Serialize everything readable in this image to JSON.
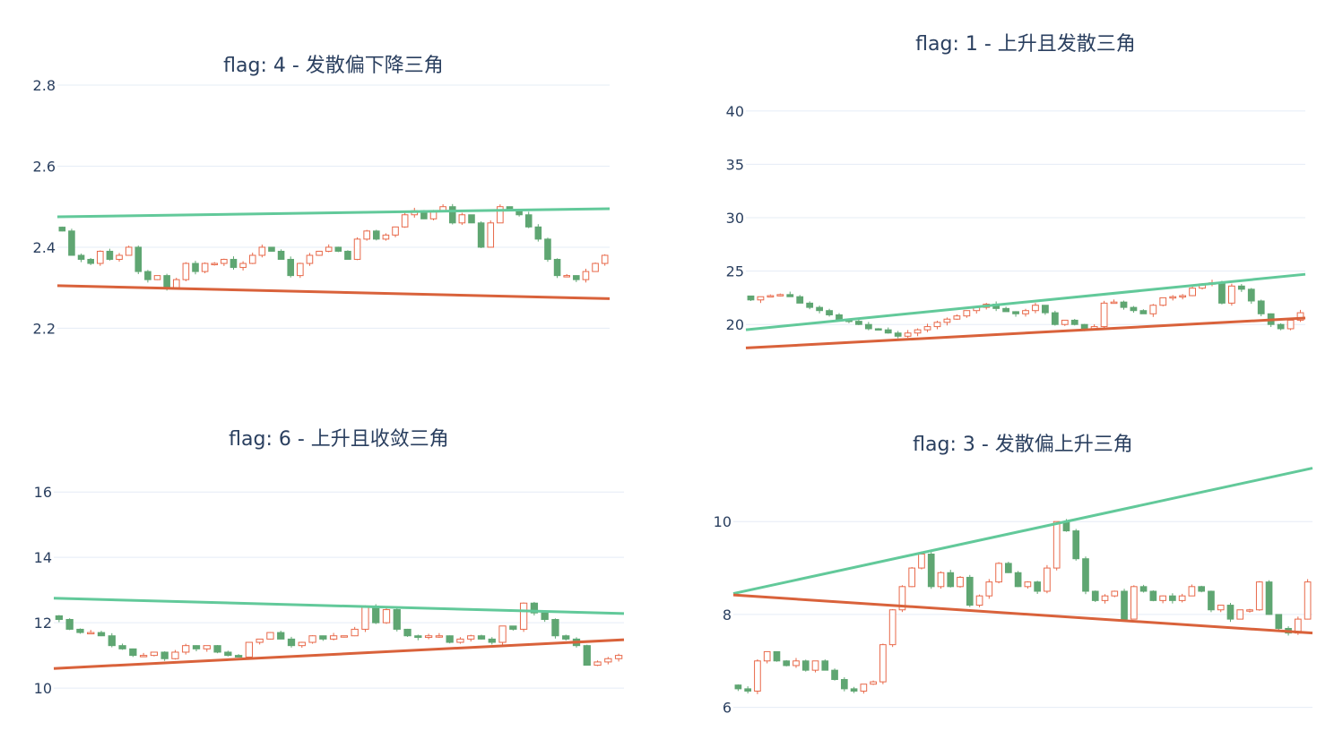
{
  "colors": {
    "up": "#e8694a",
    "down": "#5fa672",
    "upper_line": "#62c99a",
    "lower_line": "#d9623b",
    "grid": "#e5ecf6",
    "text": "#2a3f5f"
  },
  "chart_data": [
    {
      "type": "candlestick",
      "title": "flag: 4 - 发散偏下降三角",
      "xlabel": "",
      "ylabel": "",
      "ylim": [
        2.17,
        2.8
      ],
      "yticks": [
        2.2,
        2.4,
        2.6,
        2.8
      ],
      "grid": true,
      "upper_line": [
        2.475,
        2.495
      ],
      "lower_line": [
        2.305,
        2.273
      ],
      "closes": [
        2.44,
        2.38,
        2.37,
        2.36,
        2.39,
        2.37,
        2.38,
        2.4,
        2.34,
        2.32,
        2.33,
        2.3,
        2.32,
        2.36,
        2.34,
        2.36,
        2.36,
        2.37,
        2.35,
        2.36,
        2.38,
        2.4,
        2.39,
        2.37,
        2.33,
        2.36,
        2.38,
        2.39,
        2.4,
        2.39,
        2.37,
        2.42,
        2.44,
        2.42,
        2.43,
        2.45,
        2.48,
        2.49,
        2.47,
        2.49,
        2.5,
        2.46,
        2.48,
        2.46,
        2.4,
        2.46,
        2.5,
        2.49,
        2.48,
        2.45,
        2.42,
        2.37,
        2.33,
        2.33,
        2.32,
        2.34,
        2.36,
        2.38
      ],
      "note_open_is_previous_close": true
    },
    {
      "type": "candlestick",
      "title": "flag: 1 - 上升且发散三角",
      "xlabel": "",
      "ylabel": "",
      "ylim": [
        17.5,
        42
      ],
      "yticks": [
        20,
        25,
        30,
        35,
        40
      ],
      "grid": true,
      "upper_line": [
        19.5,
        24.7
      ],
      "lower_line": [
        17.8,
        20.6
      ],
      "closes": [
        22.3,
        22.6,
        22.7,
        22.8,
        22.6,
        22.0,
        21.6,
        21.3,
        20.9,
        20.4,
        20.3,
        20.0,
        19.6,
        19.5,
        19.2,
        18.9,
        19.2,
        19.5,
        19.8,
        20.2,
        20.5,
        20.8,
        21.3,
        21.6,
        21.9,
        21.5,
        21.2,
        21.0,
        21.3,
        21.8,
        21.1,
        20.0,
        20.4,
        20.0,
        19.6,
        19.8,
        22.0,
        22.1,
        21.6,
        21.3,
        21.0,
        21.8,
        22.5,
        22.6,
        22.7,
        23.4,
        23.8,
        23.9,
        22.0,
        23.6,
        23.3,
        22.2,
        21.0,
        20.0,
        19.6,
        20.4,
        21.1
      ],
      "note_open_is_previous_close": true
    },
    {
      "type": "candlestick",
      "title": "flag: 6 - 上升且收敛三角",
      "xlabel": "",
      "ylabel": "",
      "ylim": [
        9.4,
        16.8
      ],
      "yticks": [
        10,
        12,
        14,
        16
      ],
      "grid": true,
      "upper_line": [
        12.75,
        12.28
      ],
      "lower_line": [
        10.6,
        11.48
      ],
      "closes": [
        12.1,
        11.8,
        11.7,
        11.7,
        11.6,
        11.3,
        11.2,
        11.0,
        11.0,
        11.1,
        10.9,
        11.1,
        11.3,
        11.2,
        11.3,
        11.1,
        11.0,
        10.95,
        11.4,
        11.5,
        11.7,
        11.5,
        11.3,
        11.4,
        11.6,
        11.5,
        11.6,
        11.6,
        11.8,
        12.5,
        12.0,
        12.4,
        11.8,
        11.6,
        11.55,
        11.6,
        11.6,
        11.4,
        11.5,
        11.6,
        11.5,
        11.4,
        11.9,
        11.8,
        12.6,
        12.3,
        12.1,
        11.6,
        11.5,
        11.3,
        10.7,
        10.8,
        10.9,
        11.0
      ],
      "note_open_is_previous_close": true
    },
    {
      "type": "candlestick",
      "title": "flag: 3 - 发散偏上升三角",
      "xlabel": "",
      "ylabel": "",
      "ylim": [
        5.8,
        11.2
      ],
      "yticks": [
        6,
        8,
        10
      ],
      "grid": true,
      "upper_line": [
        8.45,
        11.15
      ],
      "lower_line": [
        8.42,
        7.6
      ],
      "closes": [
        6.4,
        6.35,
        7.0,
        7.2,
        7.0,
        6.9,
        7.0,
        6.8,
        7.0,
        6.8,
        6.6,
        6.4,
        6.35,
        6.5,
        6.55,
        7.35,
        8.1,
        8.6,
        9.0,
        9.3,
        8.6,
        8.9,
        8.6,
        8.8,
        8.2,
        8.4,
        8.7,
        9.1,
        8.9,
        8.6,
        8.7,
        8.5,
        9.0,
        10.0,
        9.8,
        9.2,
        8.5,
        8.3,
        8.4,
        8.5,
        7.9,
        8.6,
        8.5,
        8.3,
        8.4,
        8.3,
        8.4,
        8.6,
        8.5,
        8.1,
        8.2,
        7.9,
        8.1,
        8.1,
        8.7,
        8.0,
        7.7,
        7.6,
        7.9,
        8.7
      ],
      "note_open_is_previous_close": true
    }
  ]
}
